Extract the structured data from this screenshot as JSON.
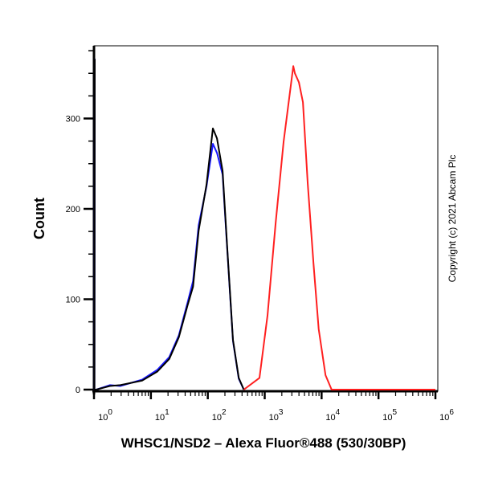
{
  "chart_data": {
    "type": "line",
    "title": "",
    "xlabel": "WHSC1/NSD2 – Alexa Fluor®488 (530/30BP)",
    "ylabel": "Count",
    "xscale": "log",
    "xlim": [
      1,
      1000000
    ],
    "ylim": [
      0,
      380
    ],
    "x_tick_labels": [
      {
        "base": "10",
        "exp": "0",
        "value": 1
      },
      {
        "base": "10",
        "exp": "1",
        "value": 10
      },
      {
        "base": "10",
        "exp": "2",
        "value": 100
      },
      {
        "base": "10",
        "exp": "3",
        "value": 1000
      },
      {
        "base": "10",
        "exp": "4",
        "value": 10000
      },
      {
        "base": "10",
        "exp": "5",
        "value": 100000
      },
      {
        "base": "10",
        "exp": "6",
        "value": 1000000
      }
    ],
    "y_ticks": [
      "0",
      "100",
      "200",
      "300"
    ],
    "grid": false,
    "legend": "none",
    "series": [
      {
        "color": "#1a1aff",
        "x": [
          1,
          1.02,
          1.1,
          1.9,
          2.9,
          7,
          13,
          21,
          31,
          44,
          55,
          69,
          95,
          123,
          145,
          182,
          219,
          277,
          350,
          430
        ],
        "y": [
          366,
          0,
          0,
          5,
          4,
          11,
          22,
          36,
          60,
          96,
          120,
          182,
          225,
          272,
          262,
          238,
          156,
          54,
          12,
          0
        ]
      },
      {
        "color": "#000000",
        "x": [
          1,
          1.02,
          1.1,
          1.9,
          2.9,
          7,
          13,
          21,
          31,
          44,
          55,
          69,
          95,
          123,
          145,
          182,
          219,
          277,
          350,
          430
        ],
        "y": [
          366,
          0,
          0,
          4,
          5,
          10,
          20,
          34,
          58,
          93,
          114,
          176,
          227,
          289,
          278,
          242,
          158,
          55,
          13,
          0
        ]
      },
      {
        "color": "#ff2020",
        "x": [
          430,
          810,
          1120,
          1560,
          2150,
          3180,
          3400,
          4000,
          4700,
          5700,
          7200,
          8900,
          11700,
          15000,
          1000000
        ],
        "y": [
          0,
          13,
          82,
          185,
          274,
          358,
          350,
          340,
          318,
          229,
          140,
          67,
          16,
          0,
          0
        ]
      }
    ]
  },
  "copyright": "Copyright (c) 2021 Abcam Plc"
}
